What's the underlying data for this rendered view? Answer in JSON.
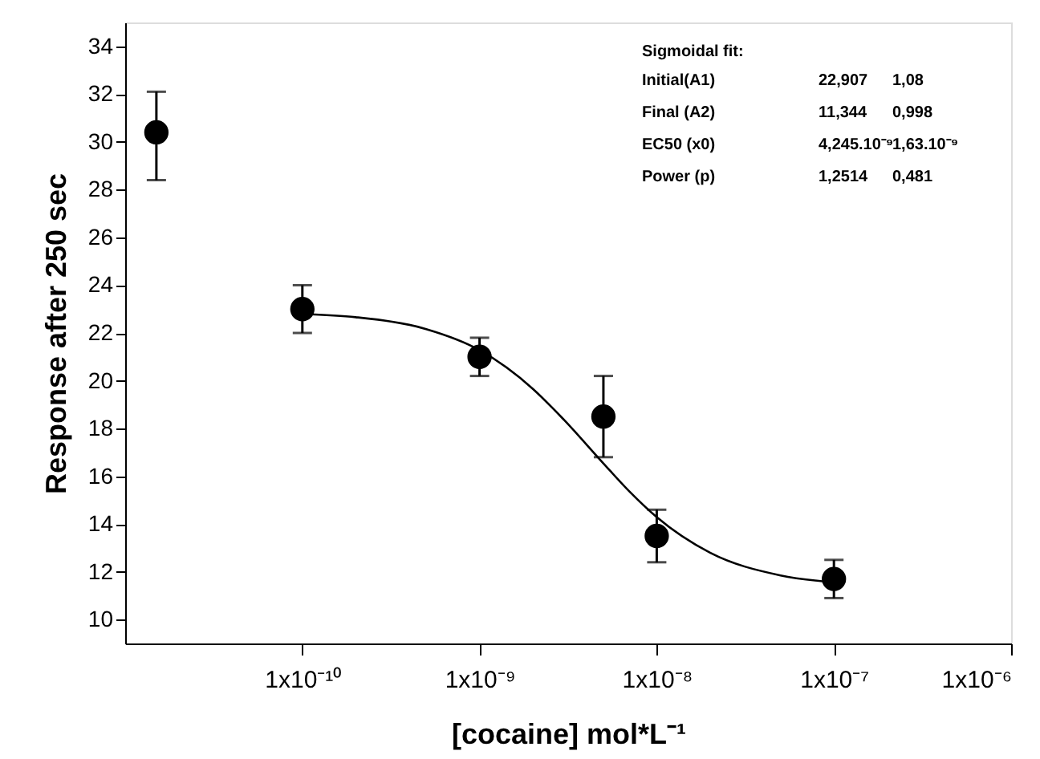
{
  "chart_data": {
    "type": "scatter",
    "xlabel": "[cocaine] mol*L⁻¹",
    "ylabel": "Response after 250 sec",
    "log": "x",
    "grid": false,
    "xlim": [
      1e-11,
      1e-06
    ],
    "xticks": [
      {
        "value": 1e-10,
        "label": "1x10⁻¹⁰"
      },
      {
        "value": 1e-09,
        "label": "1x10⁻⁹"
      },
      {
        "value": 1e-08,
        "label": "1x10⁻⁸"
      },
      {
        "value": 1e-07,
        "label": "1x10⁻⁷"
      },
      {
        "value": 1e-06,
        "label": "1x10⁻⁶"
      }
    ],
    "ylim": [
      9,
      35
    ],
    "yticks": [
      10,
      12,
      14,
      16,
      18,
      20,
      22,
      24,
      26,
      28,
      30,
      32,
      34
    ],
    "series": [
      {
        "color": "#000000",
        "marker": "circle",
        "x": [
          1.5e-11,
          1e-10,
          1e-09,
          5e-09,
          1e-08,
          1e-07
        ],
        "values": [
          30.4,
          23.0,
          21.0,
          18.5,
          13.5,
          11.7
        ],
        "errors": [
          [
            28.4,
            32.1
          ],
          1.0,
          0.8,
          1.7,
          1.1,
          0.8
        ]
      },
      {
        "type": "line",
        "color": "#000000",
        "line_style": "solid",
        "x": [
          1e-10,
          2e-10,
          5e-10,
          1e-09,
          2e-09,
          3e-09,
          5e-09,
          7e-09,
          1e-08,
          2e-08,
          5e-08,
          1e-07
        ],
        "values": [
          22.8,
          22.66,
          22.16,
          21.28,
          19.66,
          18.36,
          16.54,
          15.37,
          14.29,
          12.8,
          11.85,
          11.56
        ]
      }
    ],
    "annotations": [
      "Sigmoidal fit:",
      "Initial(A1)",
      "22,907",
      "1,08",
      "Final  (A2)",
      "11,344",
      "0,998",
      "EC50   (x0)",
      "4,245.10⁻⁹",
      "1,63.10⁻⁹",
      "Power  (p)",
      "1,2514",
      "0,481"
    ]
  }
}
